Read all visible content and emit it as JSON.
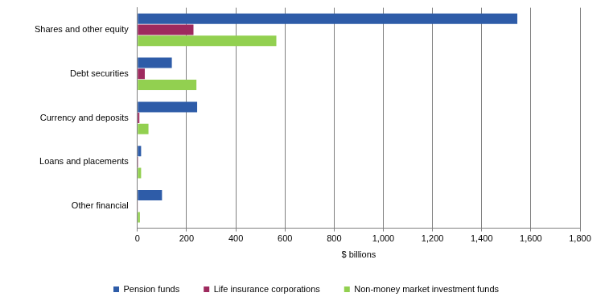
{
  "chart_data": {
    "type": "bar",
    "orientation": "horizontal",
    "categories": [
      "Shares and other equity",
      "Debt securities",
      "Currency and deposits",
      "Loans and placements",
      "Other financial"
    ],
    "series": [
      {
        "name": "Pension funds",
        "color": "#2e5ca8",
        "values": [
          1545,
          140,
          243,
          15,
          100
        ]
      },
      {
        "name": "Life insurance corporations",
        "color": "#9e2a5e",
        "values": [
          228,
          30,
          8,
          3,
          2
        ]
      },
      {
        "name": "Non-money market investment funds",
        "color": "#92d050",
        "values": [
          565,
          240,
          45,
          15,
          10
        ]
      }
    ],
    "x_label": "$ billions",
    "xlim": [
      0,
      1800
    ],
    "xticks": [
      0,
      200,
      400,
      600,
      800,
      {
        "value": 1000,
        "label": "1,000"
      },
      {
        "value": 1200,
        "label": "1,200"
      },
      {
        "value": 1400,
        "label": "1,400"
      },
      {
        "value": 1600,
        "label": "1,600"
      },
      {
        "value": 1800,
        "label": "1,800"
      }
    ],
    "grid": true,
    "legend": "bottom"
  }
}
